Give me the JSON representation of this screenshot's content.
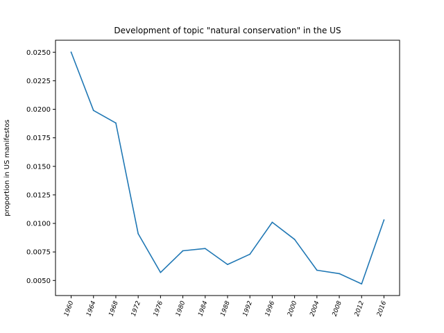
{
  "chart_data": {
    "type": "line",
    "title": "Development of topic \"natural conservation\" in the US",
    "xlabel": "",
    "ylabel": "proportion in US manifestos",
    "x": [
      1960,
      1964,
      1968,
      1972,
      1976,
      1980,
      1984,
      1988,
      1992,
      1996,
      2000,
      2004,
      2008,
      2012,
      2016
    ],
    "series": [
      {
        "values": [
          0.025,
          0.0199,
          0.0188,
          0.0091,
          0.0057,
          0.0076,
          0.0078,
          0.0064,
          0.0073,
          0.0101,
          0.0086,
          0.0059,
          0.0056,
          0.0047,
          0.0103
        ],
        "color": "#1f77b4"
      }
    ],
    "xlim": [
      1957.2,
      2018.8
    ],
    "ylim": [
      0.00368,
      0.02605
    ],
    "yticks": [
      0.005,
      0.0075,
      0.01,
      0.0125,
      0.015,
      0.0175,
      0.02,
      0.0225,
      0.025
    ],
    "ytick_labels": [
      "0.0050",
      "0.0075",
      "0.0100",
      "0.0125",
      "0.0150",
      "0.0175",
      "0.0200",
      "0.0225",
      "0.0250"
    ],
    "xtick_labels": [
      "1960",
      "1964",
      "1968",
      "1972",
      "1976",
      "1980",
      "1984",
      "1988",
      "1992",
      "1996",
      "2000",
      "2004",
      "2008",
      "2012",
      "2016"
    ],
    "grid": false,
    "legend": false
  }
}
